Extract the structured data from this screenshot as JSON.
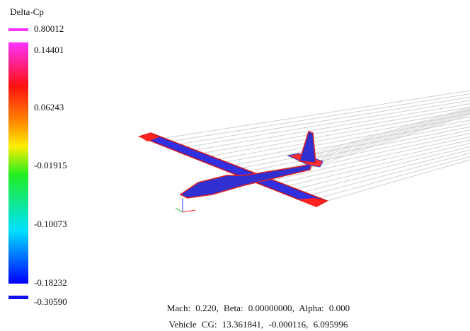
{
  "legend": {
    "title": "Delta-Cp",
    "max_label": "0.80012",
    "labels": [
      "0.14401",
      "0.06243",
      "-0.01915",
      "-0.10073",
      "-0.18232"
    ],
    "min_label": "-0.30590"
  },
  "footer": {
    "flight": "Mach: 0.220, Beta: 0.00000000, Alpha: 0.000",
    "cg": "Vehicle CG: 13.361841, -0.000116, 6.095996"
  }
}
